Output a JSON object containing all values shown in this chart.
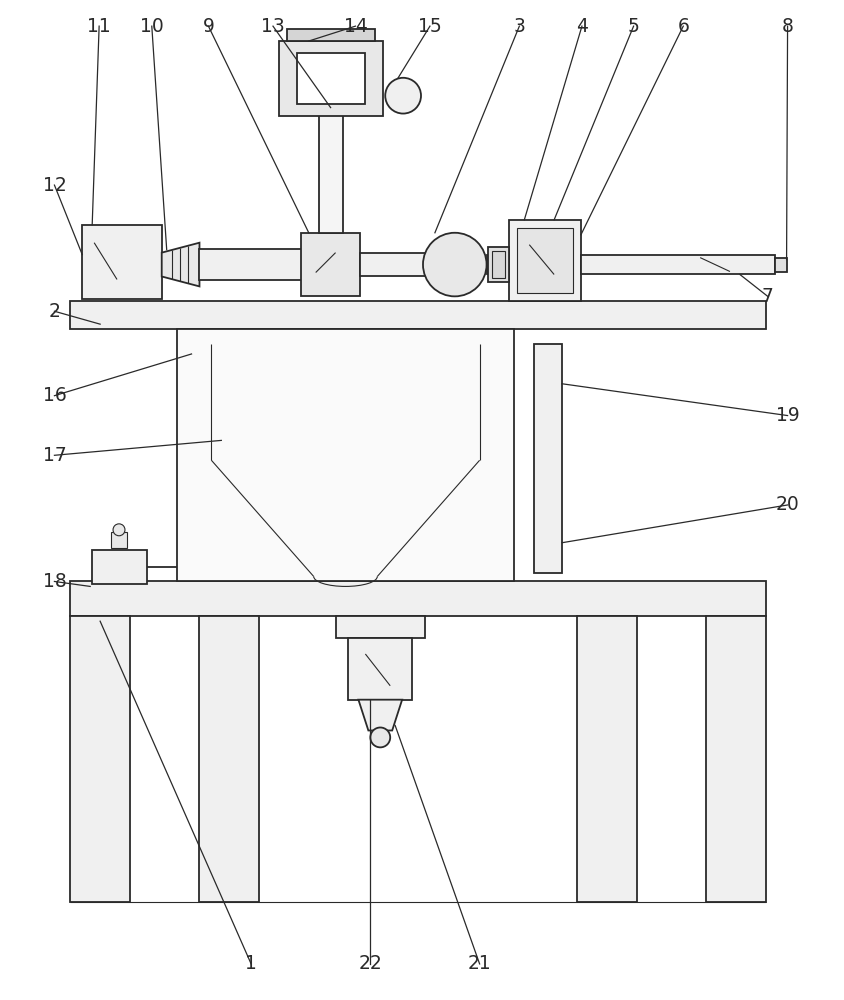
{
  "bg_color": "#ffffff",
  "line_color": "#2a2a2a",
  "line_width": 1.3,
  "fig_width": 8.44,
  "fig_height": 10.0
}
